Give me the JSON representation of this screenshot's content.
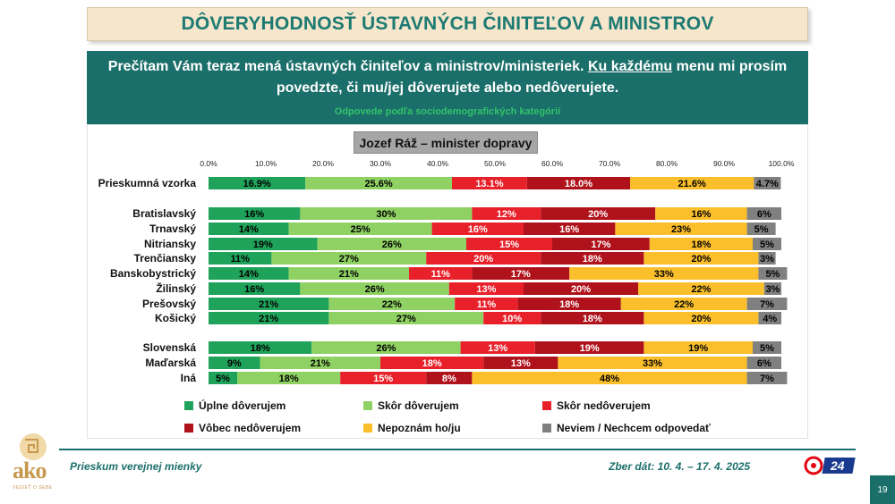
{
  "title": "DÔVERYHODNOSŤ ÚSTAVNÝCH ČINITEĽOV A MINISTROV",
  "question": {
    "line1_pre": "Prečítam Vám teraz mená ústavných činiteľov a ministrov/ministeriek. ",
    "line1_underlined": "Ku každému",
    "line1_post": " menu mi prosím",
    "line2": "povedzte, či mu/jej dôverujete alebo nedôverujete.",
    "subtitle": "Odpovede podľa sociodemografických kategórií"
  },
  "footer": {
    "left": "Prieskum verejnej mienky",
    "right": "Zber dát: 10. 4. – 17. 4. 2025",
    "page": "19",
    "logo_text": "ako",
    "logo_tagline": "VEDIEŤ O SEBE",
    "tv_label": "24"
  },
  "colors": {
    "teal": "#1b6f6a",
    "title_bg": "#f5e6cc",
    "uplne_doverujem": "#1fa35a",
    "skor_doverujem": "#8fd163",
    "skor_nedoverujem": "#e8202a",
    "vobec_nedoverujem": "#b0121b",
    "nepoznam": "#fbbf2c",
    "neviem": "#808080"
  },
  "chart_data": {
    "type": "bar",
    "orientation": "horizontal",
    "stacked": true,
    "title": "Jozef Ráž – minister dopravy",
    "xlim": [
      0,
      100
    ],
    "x_ticks": [
      "0.0%",
      "10.0%",
      "20.0%",
      "30.0%",
      "40.0%",
      "50.0%",
      "60.0%",
      "70.0%",
      "80.0%",
      "90.0%",
      "100.0%"
    ],
    "legend_position": "bottom",
    "series": [
      {
        "name": "Úplne dôverujem",
        "color": "#1fa35a",
        "label_color": "#000000"
      },
      {
        "name": "Skôr dôverujem",
        "color": "#8fd163",
        "label_color": "#000000"
      },
      {
        "name": "Skôr nedôverujem",
        "color": "#e8202a",
        "label_color": "#ffffff"
      },
      {
        "name": "Vôbec nedôverujem",
        "color": "#b0121b",
        "label_color": "#ffffff"
      },
      {
        "name": "Nepoznám ho/ju",
        "color": "#fbbf2c",
        "label_color": "#000000"
      },
      {
        "name": "Neviem / Nechcem odpovedať",
        "color": "#808080",
        "label_color": "#000000"
      }
    ],
    "rows": [
      {
        "category": "Prieskumná vzorka",
        "values": [
          16.9,
          25.6,
          13.1,
          18.0,
          21.6,
          4.7
        ],
        "labels": [
          "16.9%",
          "25.6%",
          "13.1%",
          "18.0%",
          "21.6%",
          "4.7%"
        ]
      },
      {
        "category": "Bratislavský",
        "values": [
          16,
          30,
          12,
          20,
          16,
          6
        ],
        "labels": [
          "16%",
          "30%",
          "12%",
          "20%",
          "16%",
          "6%"
        ]
      },
      {
        "category": "Trnavský",
        "values": [
          14,
          25,
          16,
          16,
          23,
          5
        ],
        "labels": [
          "14%",
          "25%",
          "16%",
          "16%",
          "23%",
          "5%"
        ]
      },
      {
        "category": "Nitriansky",
        "values": [
          19,
          26,
          15,
          17,
          18,
          5
        ],
        "labels": [
          "19%",
          "26%",
          "15%",
          "17%",
          "18%",
          "5%"
        ]
      },
      {
        "category": "Trenčiansky",
        "values": [
          11,
          27,
          20,
          18,
          20,
          3
        ],
        "labels": [
          "11%",
          "27%",
          "20%",
          "18%",
          "20%",
          "3%"
        ]
      },
      {
        "category": "Banskobystrický",
        "values": [
          14,
          21,
          11,
          17,
          33,
          5
        ],
        "labels": [
          "14%",
          "21%",
          "11%",
          "17%",
          "33%",
          "5%"
        ]
      },
      {
        "category": "Žilinský",
        "values": [
          16,
          26,
          13,
          20,
          22,
          3
        ],
        "labels": [
          "16%",
          "26%",
          "13%",
          "20%",
          "22%",
          "3%"
        ]
      },
      {
        "category": "Prešovský",
        "values": [
          21,
          22,
          11,
          18,
          22,
          7
        ],
        "labels": [
          "21%",
          "22%",
          "11%",
          "18%",
          "22%",
          "7%"
        ]
      },
      {
        "category": "Košický",
        "values": [
          21,
          27,
          10,
          18,
          20,
          4
        ],
        "labels": [
          "21%",
          "27%",
          "10%",
          "18%",
          "20%",
          "4%"
        ]
      },
      {
        "category": "Slovenská",
        "values": [
          18,
          26,
          13,
          19,
          19,
          5
        ],
        "labels": [
          "18%",
          "26%",
          "13%",
          "19%",
          "19%",
          "5%"
        ]
      },
      {
        "category": "Maďarská",
        "values": [
          9,
          21,
          18,
          13,
          33,
          6
        ],
        "labels": [
          "9%",
          "21%",
          "18%",
          "13%",
          "33%",
          "6%"
        ]
      },
      {
        "category": "Iná",
        "values": [
          5,
          18,
          15,
          8,
          48,
          7
        ],
        "labels": [
          "5%",
          "18%",
          "15%",
          "8%",
          "48%",
          "7%"
        ]
      }
    ]
  }
}
